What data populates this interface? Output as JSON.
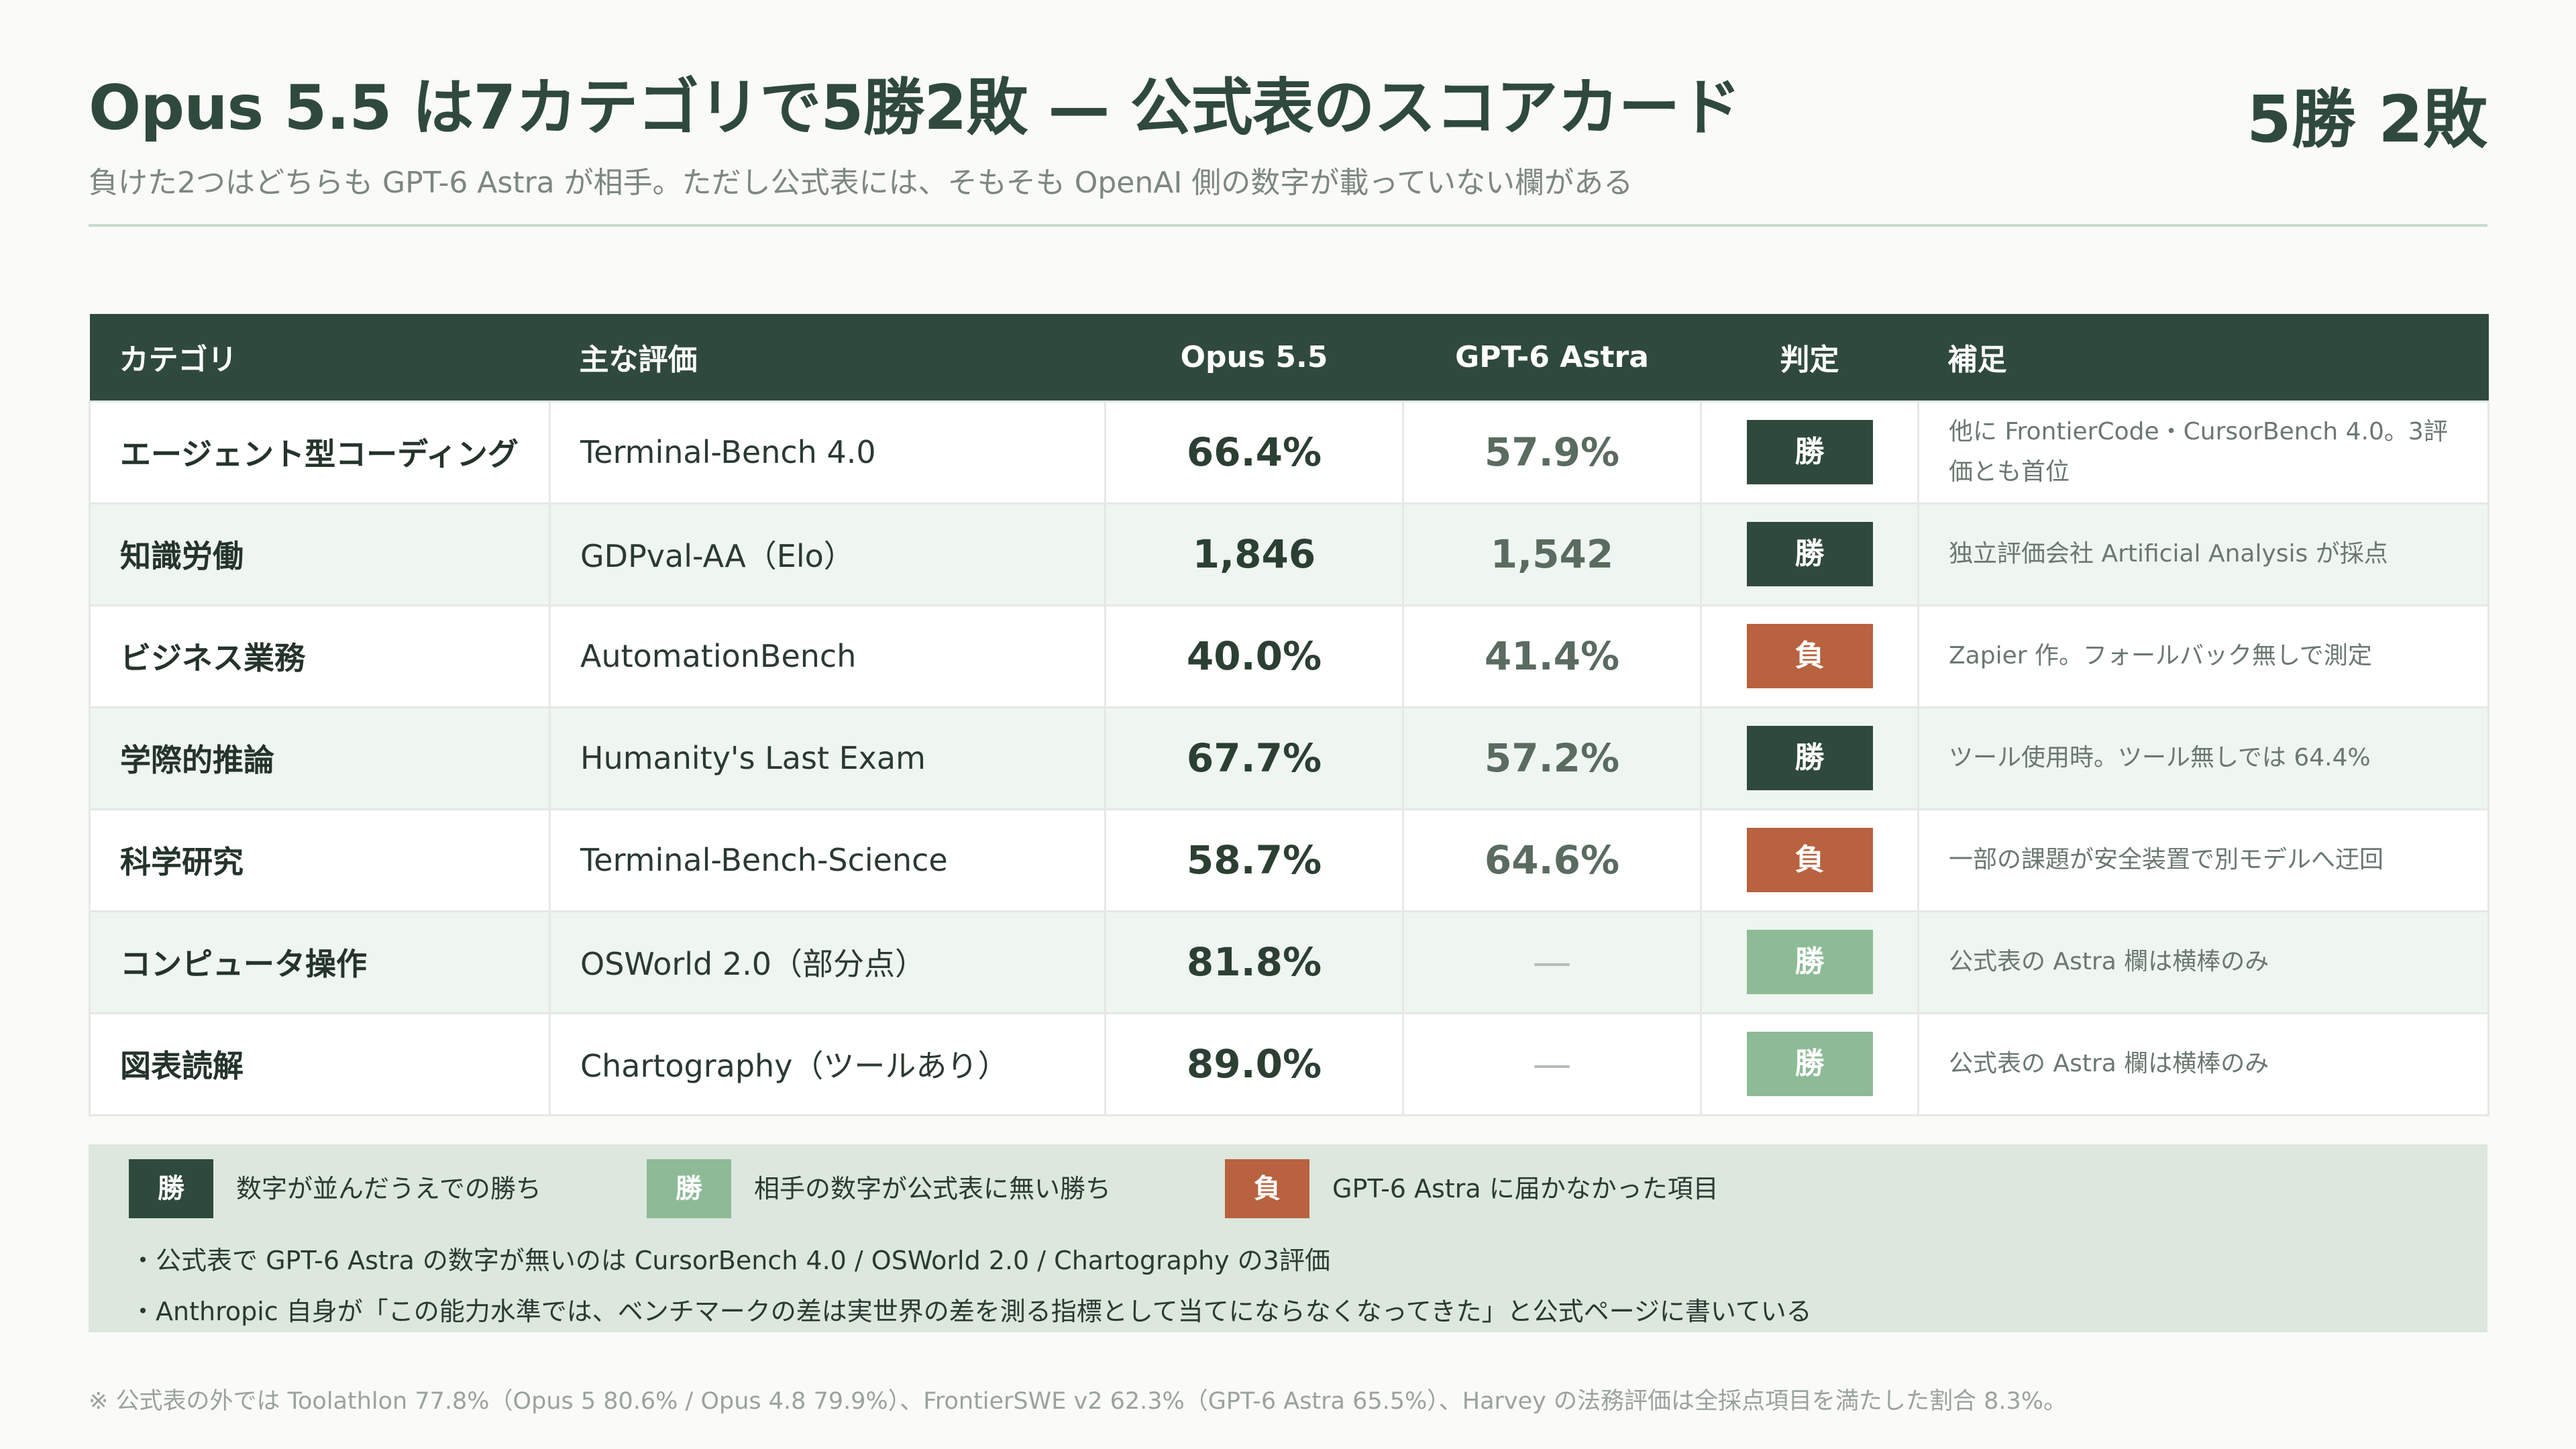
{
  "header": {
    "title": "Opus 5.5 は7カテゴリで5勝2敗 — 公式表のスコアカード",
    "score": "5勝 2敗",
    "subtitle": "負けた2つはどちらも GPT-6 Astra が相手。ただし公式表には、そもそも OpenAI 側の数字が載っていない欄がある"
  },
  "table": {
    "columns": [
      "カテゴリ",
      "主な評価",
      "Opus 5.5",
      "GPT-6 Astra",
      "判定",
      "補足"
    ],
    "rows": [
      {
        "category": "エージェント型コーディング",
        "benchmark": "Terminal-Bench 4.0",
        "opus": "66.4%",
        "astra": "57.9%",
        "result": "勝",
        "result_type": "win",
        "note": "他に FrontierCode・CursorBench 4.0。3評価とも首位"
      },
      {
        "category": "知識労働",
        "benchmark": "GDPval-AA（Elo）",
        "opus": "1,846",
        "astra": "1,542",
        "result": "勝",
        "result_type": "win",
        "note": "独立評価会社 Artificial Analysis が採点"
      },
      {
        "category": "ビジネス業務",
        "benchmark": "AutomationBench",
        "opus": "40.0%",
        "astra": "41.4%",
        "result": "負",
        "result_type": "lose",
        "note": "Zapier 作。フォールバック無しで測定"
      },
      {
        "category": "学際的推論",
        "benchmark": "Humanity's Last Exam",
        "opus": "67.7%",
        "astra": "57.2%",
        "result": "勝",
        "result_type": "win",
        "note": "ツール使用時。ツール無しでは 64.4%"
      },
      {
        "category": "科学研究",
        "benchmark": "Terminal-Bench-Science",
        "opus": "58.7%",
        "astra": "64.6%",
        "result": "負",
        "result_type": "lose",
        "note": "一部の課題が安全装置で別モデルへ迂回"
      },
      {
        "category": "コンピュータ操作",
        "benchmark": "OSWorld 2.0（部分点）",
        "opus": "81.8%",
        "astra": "—",
        "result": "勝",
        "result_type": "win-soft",
        "note": "公式表の Astra 欄は横棒のみ"
      },
      {
        "category": "図表読解",
        "benchmark": "Chartography（ツールあり）",
        "opus": "89.0%",
        "astra": "—",
        "result": "勝",
        "result_type": "win-soft",
        "note": "公式表の Astra 欄は横棒のみ"
      }
    ]
  },
  "legend": {
    "items": [
      {
        "badge": "勝",
        "type": "win",
        "text": "数字が並んだうえでの勝ち"
      },
      {
        "badge": "勝",
        "type": "win-soft",
        "text": "相手の数字が公式表に無い勝ち"
      },
      {
        "badge": "負",
        "type": "lose",
        "text": "GPT-6 Astra に届かなかった項目"
      }
    ],
    "bullets": [
      "・公式表で GPT-6 Astra の数字が無いのは CursorBench 4.0 / OSWorld 2.0 / Chartography の3評価",
      "・Anthropic 自身が「この能力水準では、ベンチマークの差は実世界の差を測る指標として当てにならなくなってきた」と公式ページに書いている"
    ]
  },
  "footnote": "※ 公式表の外では Toolathlon 77.8%（Opus 5 80.6% / Opus 4.8 79.9%）、FrontierSWE v2 62.3%（GPT-6 Astra 65.5%）、Harvey の法務評価は全採点項目を満たした割合 8.3%。",
  "colors": {
    "primary": "#2f4a3c",
    "win_soft": "#8dbb96",
    "lose": "#b8623f",
    "legend_bg": "#dce7de"
  }
}
